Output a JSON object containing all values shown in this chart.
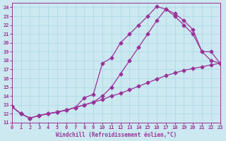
{
  "xlabel": "Windchill (Refroidissement éolien,°C)",
  "bg_color": "#cce8f0",
  "line_color": "#993399",
  "marker": "D",
  "markersize": 2.5,
  "linewidth": 0.9,
  "series1_x": [
    0,
    1,
    2,
    3,
    4,
    5,
    6,
    7,
    8,
    9,
    10,
    11,
    12,
    13,
    14,
    15,
    16,
    17,
    18,
    19,
    20,
    21,
    22,
    23
  ],
  "series1_y": [
    12.8,
    12.0,
    11.5,
    11.8,
    12.0,
    12.2,
    12.4,
    12.7,
    13.0,
    13.3,
    13.6,
    14.0,
    14.3,
    14.7,
    15.1,
    15.5,
    15.9,
    16.3,
    16.6,
    16.9,
    17.1,
    17.3,
    17.5,
    17.7
  ],
  "series2_x": [
    0,
    1,
    2,
    3,
    4,
    5,
    6,
    7,
    8,
    9,
    10,
    11,
    12,
    13,
    14,
    15,
    16,
    17,
    18,
    19,
    20,
    21,
    22,
    23
  ],
  "series2_y": [
    12.8,
    12.0,
    11.5,
    11.8,
    12.0,
    12.2,
    12.4,
    12.7,
    13.0,
    13.3,
    14.0,
    15.0,
    16.5,
    18.0,
    19.5,
    21.0,
    22.5,
    23.8,
    23.3,
    22.5,
    21.5,
    19.0,
    18.0,
    17.7
  ],
  "series3_x": [
    0,
    1,
    2,
    3,
    4,
    5,
    6,
    7,
    8,
    9,
    10,
    11,
    12,
    13,
    14,
    15,
    16,
    17,
    18,
    19,
    20,
    21,
    22,
    23
  ],
  "series3_y": [
    12.8,
    12.0,
    11.5,
    11.8,
    12.0,
    12.2,
    12.4,
    12.7,
    13.8,
    14.2,
    17.7,
    18.3,
    20.0,
    21.0,
    22.0,
    23.0,
    24.1,
    23.8,
    23.0,
    22.0,
    21.0,
    19.0,
    19.0,
    17.7
  ],
  "xlim": [
    0,
    23
  ],
  "ylim": [
    11,
    24.5
  ],
  "xticks": [
    0,
    1,
    2,
    3,
    4,
    5,
    6,
    7,
    8,
    9,
    10,
    11,
    12,
    13,
    14,
    15,
    16,
    17,
    18,
    19,
    20,
    21,
    22,
    23
  ],
  "yticks": [
    11,
    12,
    13,
    14,
    15,
    16,
    17,
    18,
    19,
    20,
    21,
    22,
    23,
    24
  ],
  "grid_color": "#a8d8e8",
  "tick_fontsize": 5.0
}
